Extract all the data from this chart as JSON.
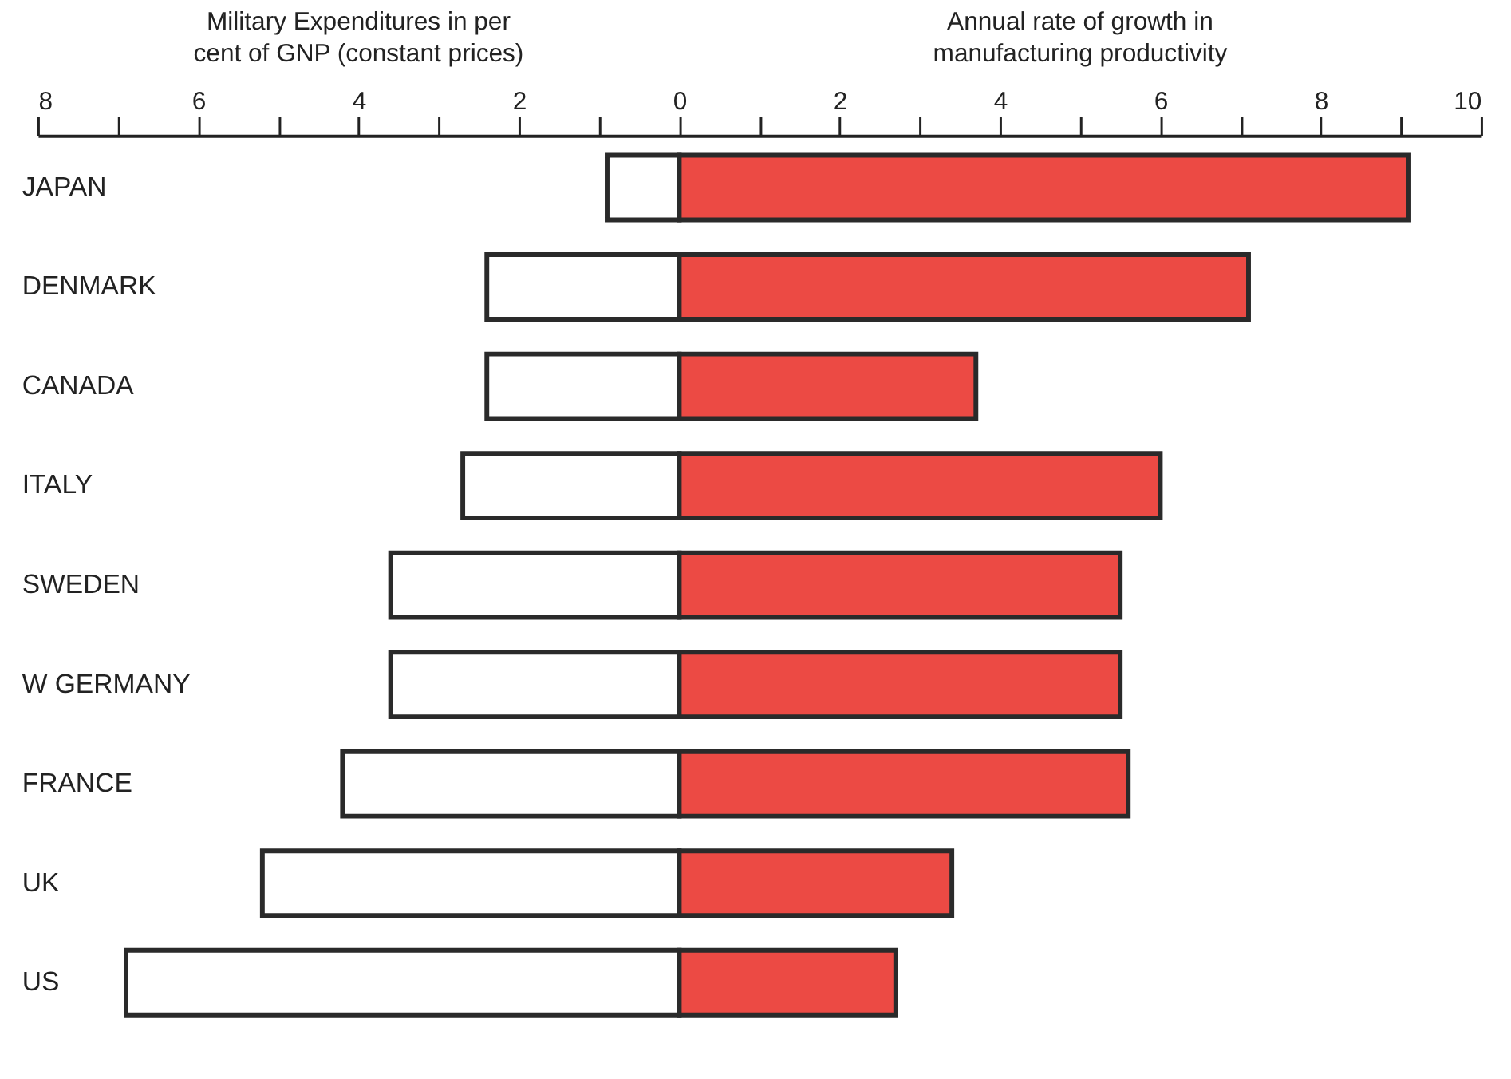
{
  "chart_data": {
    "type": "bar",
    "orientation": "horizontal",
    "stacked": true,
    "categories": [
      "JAPAN",
      "DENMARK",
      "CANADA",
      "ITALY",
      "SWEDEN",
      "W GERMANY",
      "FRANCE",
      "UK",
      "US"
    ],
    "series": [
      {
        "color": "#ffffff",
        "values": [
          -0.9,
          -2.4,
          -2.4,
          -2.7,
          -3.6,
          -3.6,
          -4.2,
          -5.2,
          -6.9
        ]
      },
      {
        "color": "#ec4a44",
        "values": [
          9.1,
          7.1,
          3.7,
          6.0,
          5.5,
          5.5,
          5.6,
          3.4,
          2.7
        ]
      }
    ],
    "xlim": [
      -8,
      10
    ],
    "xticks": [
      {
        "value": -8,
        "label": "8"
      },
      {
        "value": -7,
        "label": null
      },
      {
        "value": -6,
        "label": "6"
      },
      {
        "value": -5,
        "label": null
      },
      {
        "value": -4,
        "label": "4"
      },
      {
        "value": -3,
        "label": null
      },
      {
        "value": -2,
        "label": "2"
      },
      {
        "value": -1,
        "label": null
      },
      0,
      {
        "value": 1,
        "label": null
      },
      2,
      {
        "value": 3,
        "label": null
      },
      4,
      {
        "value": 5,
        "label": null
      },
      6,
      {
        "value": 7,
        "label": null
      },
      8,
      {
        "value": 9,
        "label": null
      },
      10
    ],
    "annotations": [
      "Military Expenditures in per\ncent of GNP (constant prices)",
      "Annual rate of growth in\nmanufacturing productivity"
    ],
    "grid": false,
    "legend": false
  }
}
